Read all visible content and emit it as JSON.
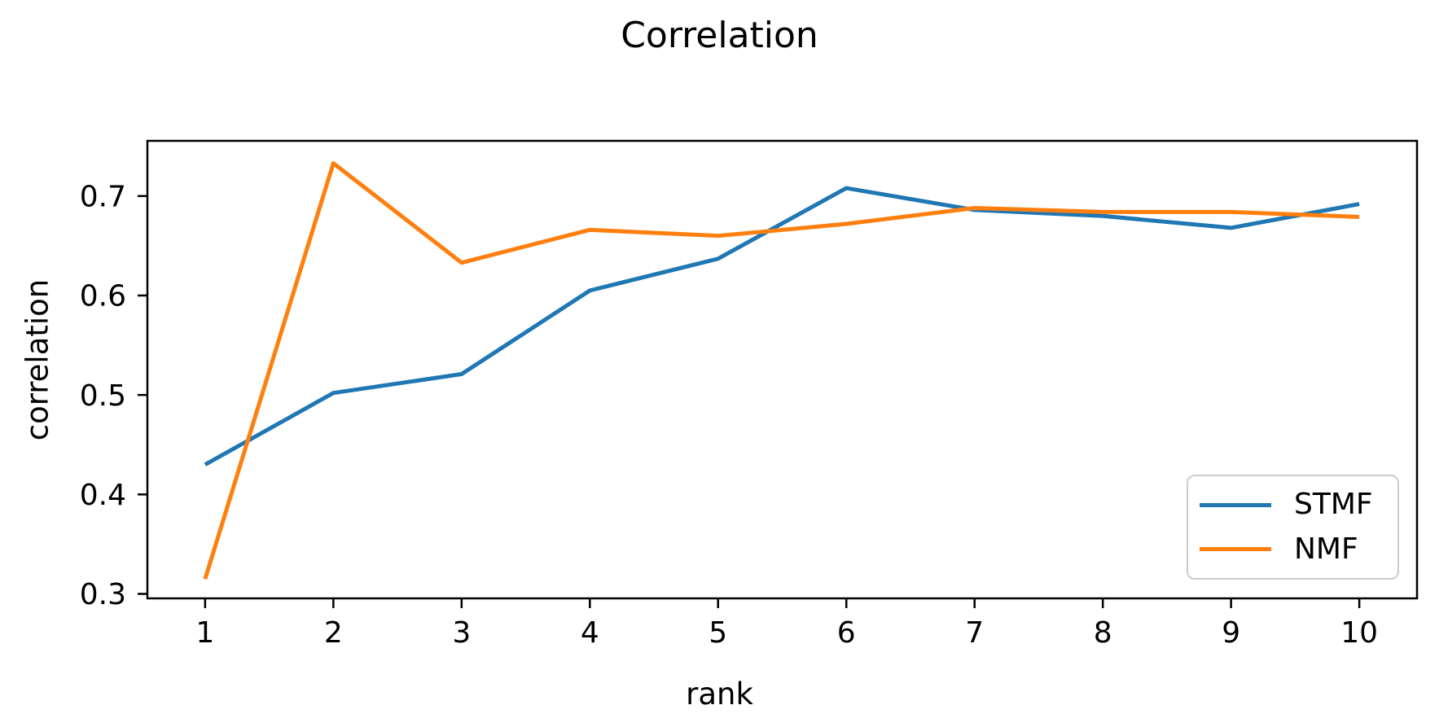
{
  "chart": {
    "title": "Correlation",
    "xlabel": "rank",
    "ylabel": "correlation"
  },
  "chart_data": {
    "type": "line",
    "title": "Correlation",
    "xlabel": "rank",
    "ylabel": "correlation",
    "x": [
      1,
      2,
      3,
      4,
      5,
      6,
      7,
      8,
      9,
      10
    ],
    "series": [
      {
        "name": "STMF",
        "color": "#1f77b4",
        "values": [
          0.43,
          0.502,
          0.521,
          0.605,
          0.637,
          0.708,
          0.686,
          0.68,
          0.668,
          0.692
        ]
      },
      {
        "name": "NMF",
        "color": "#ff7f0e",
        "values": [
          0.315,
          0.733,
          0.633,
          0.666,
          0.66,
          0.672,
          0.688,
          0.684,
          0.684,
          0.679
        ]
      }
    ],
    "xlim": [
      0.55,
      10.45
    ],
    "ylim": [
      0.2955,
      0.7555
    ],
    "xticks": [
      1,
      2,
      3,
      4,
      5,
      6,
      7,
      8,
      9,
      10
    ],
    "yticks": [
      0.3,
      0.4,
      0.5,
      0.6,
      0.7
    ],
    "grid": false,
    "legend_position": "lower right",
    "axis_color": "#000000"
  }
}
